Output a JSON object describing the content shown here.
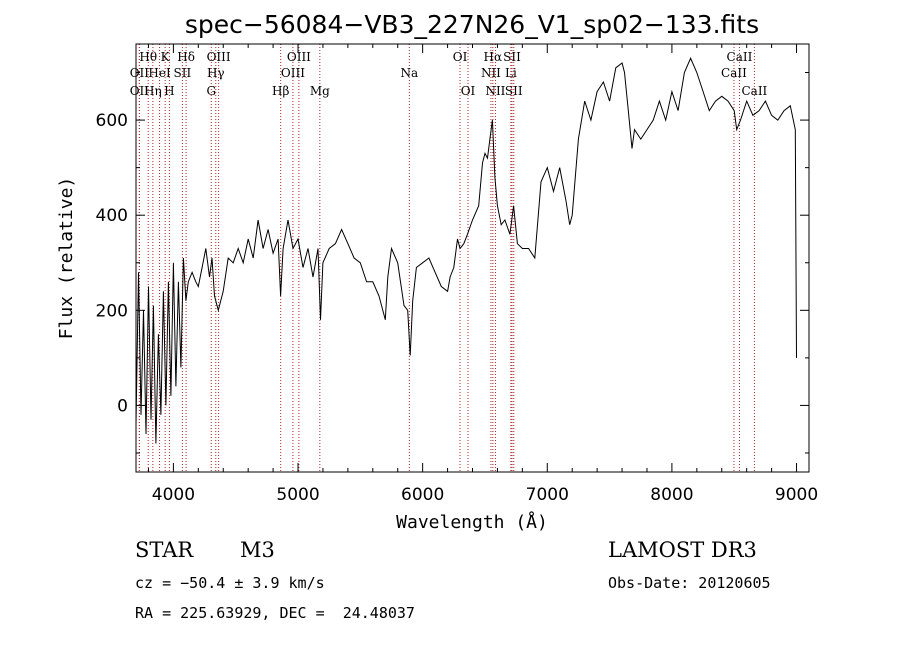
{
  "chart_data": {
    "type": "line",
    "title": "spec−56084−VB3_227N26_V1_sp02−133.fits",
    "xlabel": "Wavelength (Å)",
    "ylabel": "Flux (relative)",
    "xlim": [
      3700,
      9100
    ],
    "ylim": [
      -140,
      760
    ],
    "xticks": [
      4000,
      5000,
      6000,
      7000,
      8000,
      9000
    ],
    "yticks": [
      0,
      200,
      400,
      600
    ],
    "series": [
      {
        "name": "flux",
        "x": [
          3700,
          3720,
          3740,
          3760,
          3780,
          3800,
          3820,
          3840,
          3860,
          3880,
          3900,
          3920,
          3940,
          3960,
          3980,
          4000,
          4020,
          4040,
          4060,
          4080,
          4100,
          4120,
          4150,
          4180,
          4200,
          4230,
          4260,
          4290,
          4310,
          4330,
          4360,
          4400,
          4440,
          4480,
          4520,
          4560,
          4600,
          4640,
          4680,
          4720,
          4760,
          4800,
          4840,
          4860,
          4880,
          4920,
          4960,
          5000,
          5040,
          5080,
          5120,
          5160,
          5180,
          5200,
          5250,
          5300,
          5350,
          5400,
          5450,
          5500,
          5550,
          5600,
          5650,
          5700,
          5720,
          5750,
          5800,
          5850,
          5880,
          5900,
          5920,
          5950,
          6000,
          6050,
          6100,
          6150,
          6200,
          6220,
          6250,
          6280,
          6300,
          6330,
          6360,
          6400,
          6450,
          6480,
          6500,
          6520,
          6540,
          6560,
          6580,
          6600,
          6630,
          6660,
          6700,
          6730,
          6760,
          6800,
          6850,
          6900,
          6950,
          7000,
          7050,
          7100,
          7150,
          7180,
          7200,
          7250,
          7300,
          7350,
          7400,
          7450,
          7500,
          7550,
          7600,
          7620,
          7650,
          7680,
          7700,
          7750,
          7800,
          7850,
          7900,
          7950,
          8000,
          8050,
          8100,
          8150,
          8200,
          8250,
          8300,
          8350,
          8400,
          8450,
          8500,
          8520,
          8550,
          8600,
          8650,
          8700,
          8750,
          8800,
          8850,
          8900,
          8950,
          8990,
          9000
        ],
        "values": [
          -40,
          280,
          -20,
          200,
          -60,
          250,
          -30,
          210,
          -80,
          150,
          -20,
          240,
          0,
          260,
          20,
          300,
          40,
          260,
          80,
          310,
          220,
          260,
          280,
          260,
          250,
          290,
          330,
          270,
          310,
          230,
          200,
          240,
          310,
          300,
          330,
          300,
          350,
          310,
          390,
          330,
          370,
          320,
          350,
          230,
          330,
          390,
          330,
          350,
          290,
          330,
          270,
          330,
          180,
          300,
          330,
          340,
          370,
          340,
          310,
          300,
          260,
          260,
          230,
          180,
          270,
          330,
          300,
          210,
          200,
          105,
          220,
          290,
          300,
          310,
          280,
          250,
          240,
          270,
          290,
          350,
          330,
          340,
          360,
          390,
          420,
          510,
          530,
          520,
          560,
          600,
          480,
          420,
          380,
          390,
          360,
          420,
          340,
          330,
          330,
          310,
          470,
          500,
          450,
          500,
          430,
          380,
          400,
          560,
          640,
          600,
          660,
          680,
          640,
          710,
          720,
          700,
          620,
          540,
          580,
          560,
          580,
          600,
          640,
          600,
          660,
          620,
          700,
          730,
          700,
          660,
          620,
          640,
          650,
          640,
          620,
          580,
          600,
          640,
          610,
          620,
          640,
          610,
          600,
          620,
          630,
          580,
          100
        ],
        "color": "#000000"
      }
    ],
    "line_markers": [
      {
        "label": "Hθ",
        "x": 3798,
        "row": 1
      },
      {
        "label": "OII",
        "x": 3727,
        "row": 2
      },
      {
        "label": "OII",
        "x": 3727,
        "row": 3
      },
      {
        "label": "K",
        "x": 3934,
        "row": 1
      },
      {
        "label": "HeI",
        "x": 3889,
        "row": 2
      },
      {
        "label": "Hη",
        "x": 3835,
        "row": 3
      },
      {
        "label": "H",
        "x": 3968,
        "row": 3
      },
      {
        "label": "Hδ",
        "x": 4102,
        "row": 1
      },
      {
        "label": "SII",
        "x": 4072,
        "row": 2
      },
      {
        "label": "OIII",
        "x": 4363,
        "row": 1
      },
      {
        "label": "Hγ",
        "x": 4340,
        "row": 2
      },
      {
        "label": "G",
        "x": 4304,
        "row": 3
      },
      {
        "label": "OIII",
        "x": 5007,
        "row": 1
      },
      {
        "label": "OIII",
        "x": 4959,
        "row": 2
      },
      {
        "label": "Hβ",
        "x": 4861,
        "row": 3
      },
      {
        "label": "Mg",
        "x": 5175,
        "row": 3
      },
      {
        "label": "Na",
        "x": 5893,
        "row": 2
      },
      {
        "label": "OI",
        "x": 6300,
        "row": 1
      },
      {
        "label": "OI",
        "x": 6364,
        "row": 3
      },
      {
        "label": "Hα",
        "x": 6563,
        "row": 1
      },
      {
        "label": "SII",
        "x": 6717,
        "row": 1
      },
      {
        "label": "NII",
        "x": 6548,
        "row": 2
      },
      {
        "label": "Li",
        "x": 6708,
        "row": 2
      },
      {
        "label": "NII",
        "x": 6584,
        "row": 3
      },
      {
        "label": "SII",
        "x": 6731,
        "row": 3
      },
      {
        "label": "CaII",
        "x": 8542,
        "row": 1
      },
      {
        "label": "CaII",
        "x": 8498,
        "row": 2
      },
      {
        "label": "CaII",
        "x": 8662,
        "row": 3
      }
    ],
    "grid": false
  },
  "info": {
    "object_class": "STAR",
    "subclass": "M3",
    "survey": "LAMOST DR3",
    "cz": "cz = −50.4 ± 3.9 km/s",
    "obs_date": "Obs-Date: 20120605",
    "coords": "RA = 225.63929, DEC =  24.48037"
  },
  "colors": {
    "marker": "#b22222",
    "line": "#000000"
  }
}
